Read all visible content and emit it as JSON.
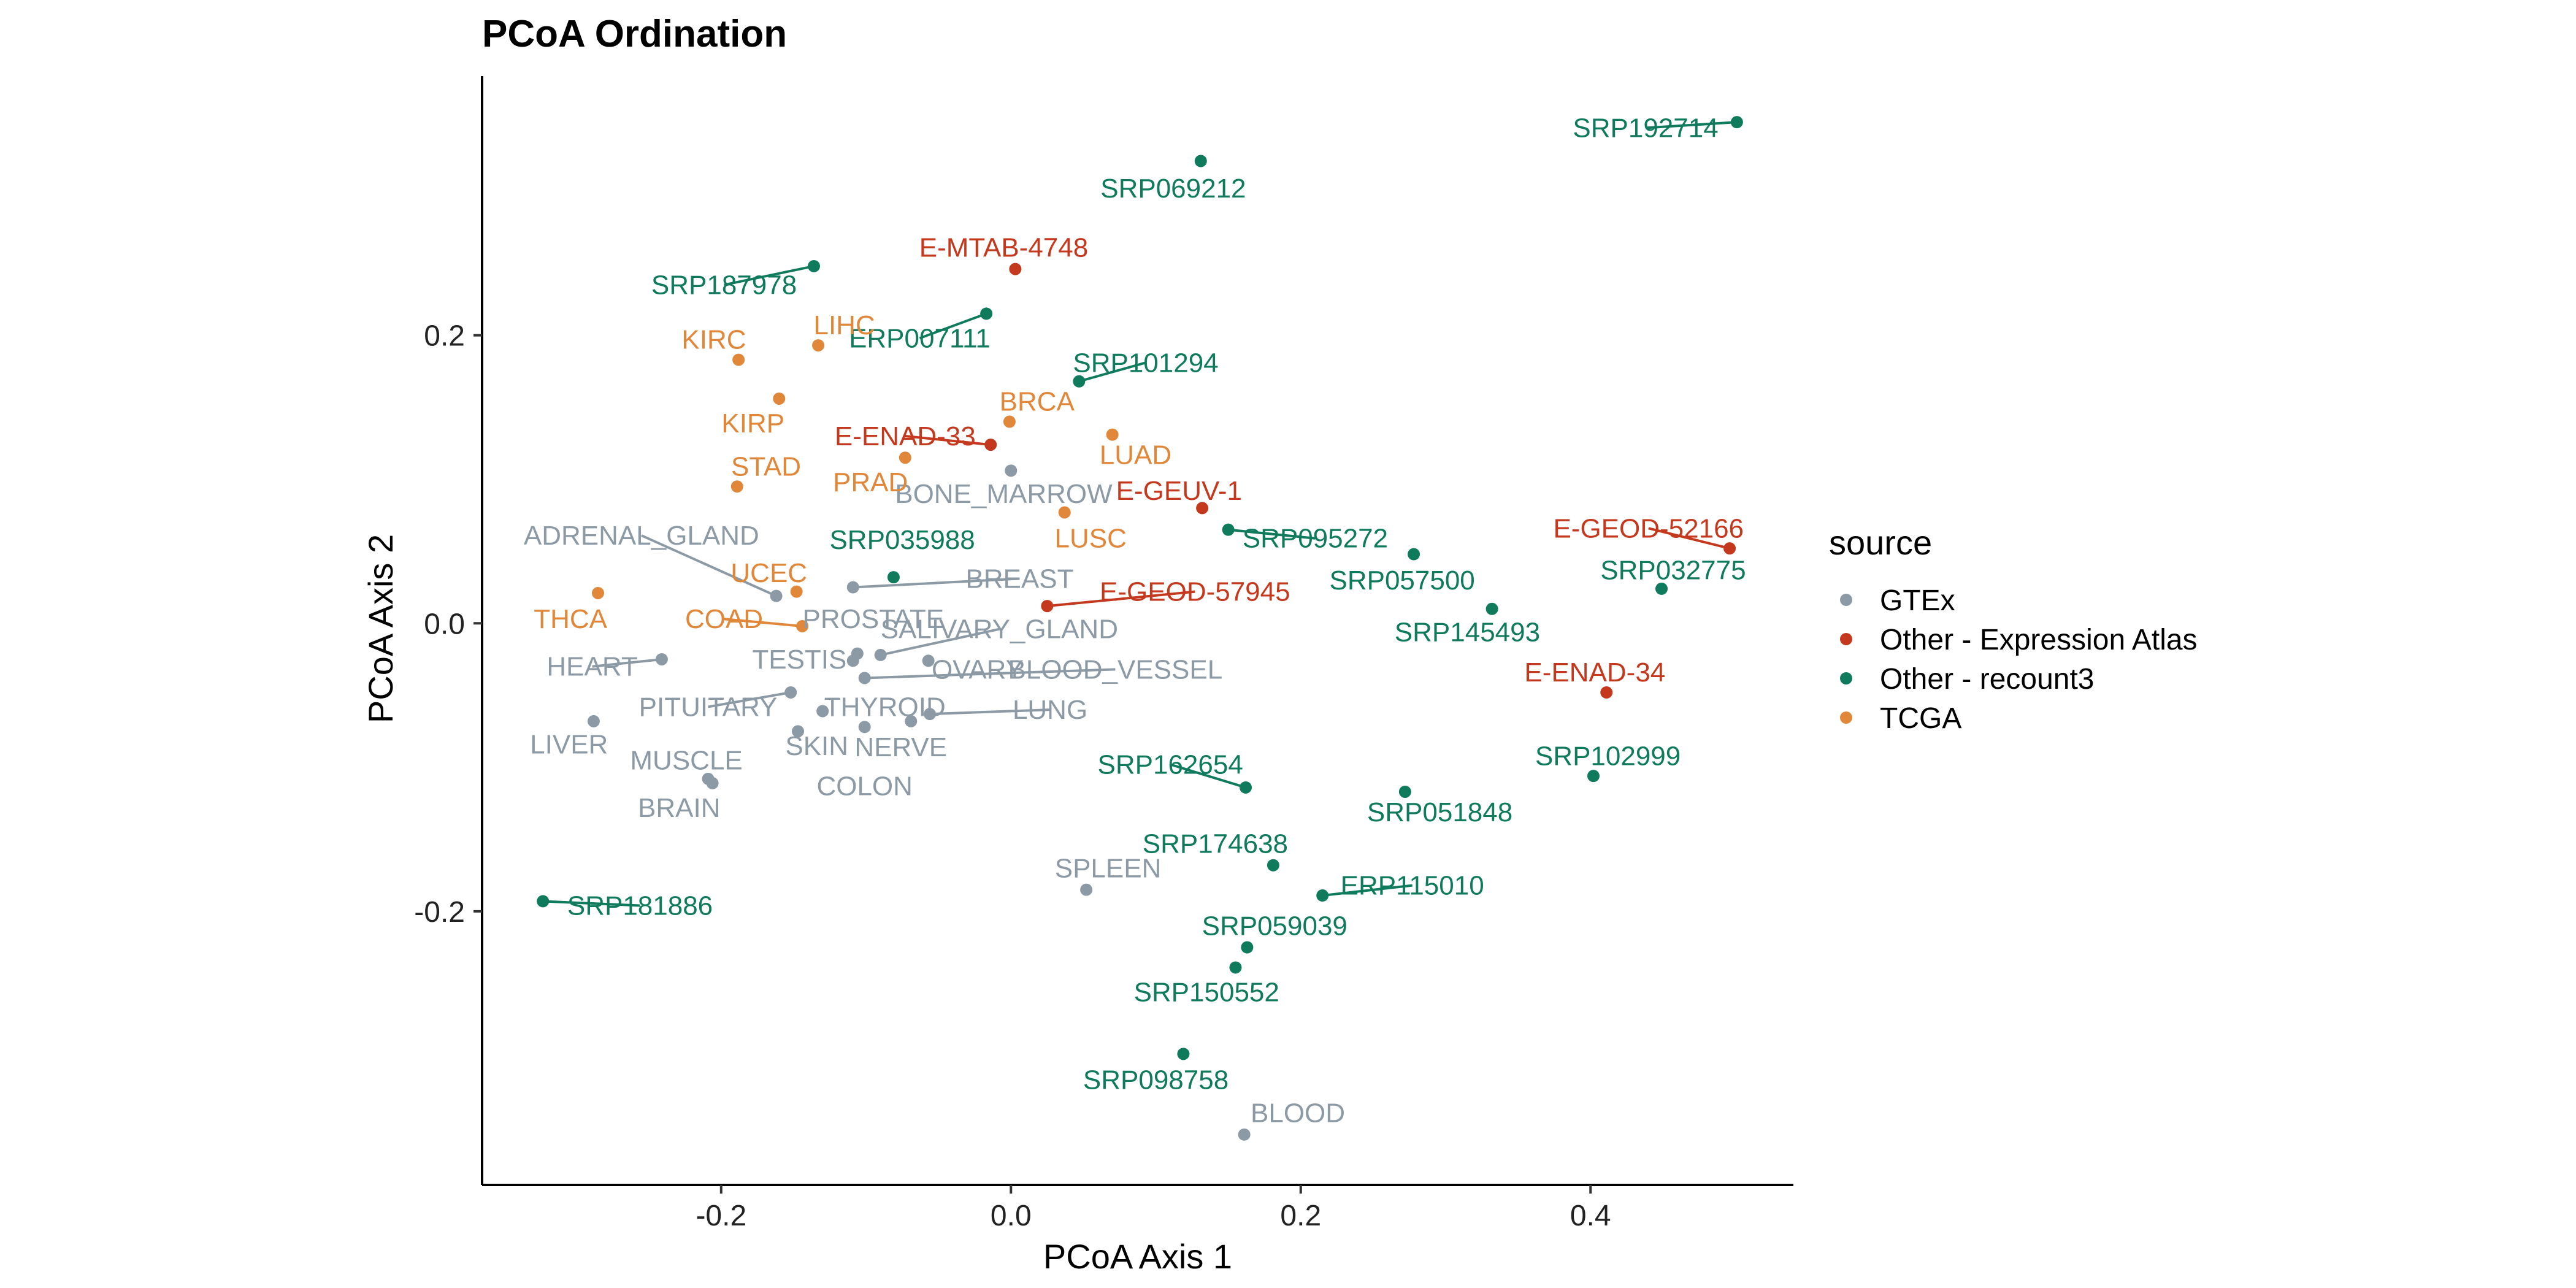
{
  "chart_data": {
    "type": "scatter",
    "title": "PCoA Ordination",
    "xlabel": "PCoA Axis 1",
    "ylabel": "PCoA Axis 2",
    "xlim": [
      -0.365,
      0.54
    ],
    "ylim": [
      -0.39,
      0.38
    ],
    "xticks": [
      -0.2,
      0.0,
      0.2,
      0.4
    ],
    "yticks": [
      0.2,
      0.0,
      -0.2
    ],
    "xtick_labels": [
      "-0.2",
      "0.0",
      "0.2",
      "0.4"
    ],
    "ytick_labels": [
      "0.2",
      "0.0",
      "-0.2"
    ],
    "grid": false,
    "legend": {
      "title": "source",
      "placement": "right",
      "entries": [
        {
          "name": "GTEx",
          "color": "#8c9aa5"
        },
        {
          "name": "Other - Expression Atlas",
          "color": "#c4391d"
        },
        {
          "name": "Other - recount3",
          "color": "#0f7a5c"
        },
        {
          "name": "TCGA",
          "color": "#e0873a"
        }
      ]
    },
    "series": [
      {
        "name": "GTEx",
        "color": "#8c9aa5",
        "points": [
          {
            "label": "BONE_MARROW",
            "x": 0.0,
            "y": 0.106,
            "lx": -0.005,
            "ly": 0.09
          },
          {
            "label": "ADRENAL_GLAND",
            "x": -0.162,
            "y": 0.019,
            "lx": -0.255,
            "ly": 0.061
          },
          {
            "label": "BREAST",
            "x": -0.109,
            "y": 0.025,
            "lx": 0.006,
            "ly": 0.031
          },
          {
            "label": "PROSTATE",
            "x": -0.106,
            "y": -0.021,
            "lx": -0.095,
            "ly": 0.003
          },
          {
            "label": "SALIVARY_GLAND",
            "x": -0.09,
            "y": -0.022,
            "lx": -0.008,
            "ly": -0.004
          },
          {
            "label": "TESTIS",
            "x": -0.109,
            "y": -0.026,
            "lx": -0.146,
            "ly": -0.025
          },
          {
            "label": "OVARY",
            "x": -0.057,
            "y": -0.026,
            "lx": -0.023,
            "ly": -0.032
          },
          {
            "label": "BLOOD_VESSEL",
            "x": -0.101,
            "y": -0.038,
            "lx": 0.072,
            "ly": -0.032
          },
          {
            "label": "HEART",
            "x": -0.241,
            "y": -0.025,
            "lx": -0.289,
            "ly": -0.03
          },
          {
            "label": "PITUITARY",
            "x": -0.152,
            "y": -0.048,
            "lx": -0.209,
            "ly": -0.058
          },
          {
            "label": "THYROID",
            "x": -0.13,
            "y": -0.061,
            "lx": -0.087,
            "ly": -0.058
          },
          {
            "label": "LUNG",
            "x": -0.056,
            "y": -0.063,
            "lx": 0.027,
            "ly": -0.06
          },
          {
            "label": "SKIN",
            "x": -0.147,
            "y": -0.075,
            "lx": -0.134,
            "ly": -0.085
          },
          {
            "label": "NERVE",
            "x": -0.069,
            "y": -0.068,
            "lx": -0.076,
            "ly": -0.086
          },
          {
            "label": "COLON",
            "x": -0.101,
            "y": -0.072,
            "lx": -0.101,
            "ly": -0.113
          },
          {
            "label": "LIVER",
            "x": -0.288,
            "y": -0.068,
            "lx": -0.305,
            "ly": -0.084
          },
          {
            "label": "MUSCLE",
            "x": -0.209,
            "y": -0.108,
            "lx": -0.224,
            "ly": -0.095
          },
          {
            "label": "BRAIN",
            "x": -0.206,
            "y": -0.111,
            "lx": -0.229,
            "ly": -0.128
          },
          {
            "label": "SPLEEN",
            "x": 0.052,
            "y": -0.185,
            "lx": 0.067,
            "ly": -0.17
          },
          {
            "label": "BLOOD",
            "x": 0.161,
            "y": -0.355,
            "lx": 0.198,
            "ly": -0.34
          }
        ]
      },
      {
        "name": "Other - Expression Atlas",
        "color": "#c4391d",
        "points": [
          {
            "label": "E-MTAB-4748",
            "x": 0.003,
            "y": 0.246,
            "lx": -0.005,
            "ly": 0.261
          },
          {
            "label": "E-ENAD-33",
            "x": -0.014,
            "y": 0.124,
            "lx": -0.073,
            "ly": 0.13
          },
          {
            "label": "E-GEUV-1",
            "x": 0.132,
            "y": 0.08,
            "lx": 0.116,
            "ly": 0.092
          },
          {
            "label": "E-GEOD-57945",
            "x": 0.025,
            "y": 0.012,
            "lx": 0.127,
            "ly": 0.022
          },
          {
            "label": "E-GEOD-52166",
            "x": 0.496,
            "y": 0.052,
            "lx": 0.44,
            "ly": 0.066
          },
          {
            "label": "E-ENAD-34",
            "x": 0.411,
            "y": -0.048,
            "lx": 0.403,
            "ly": -0.034
          }
        ]
      },
      {
        "name": "Other - recount3",
        "color": "#0f7a5c",
        "points": [
          {
            "label": "SRP192714",
            "x": 0.501,
            "y": 0.348,
            "lx": 0.438,
            "ly": 0.344
          },
          {
            "label": "SRP069212",
            "x": 0.131,
            "y": 0.321,
            "lx": 0.112,
            "ly": 0.302
          },
          {
            "label": "SRP187978",
            "x": -0.136,
            "y": 0.248,
            "lx": -0.198,
            "ly": 0.235
          },
          {
            "label": "ERP007111",
            "x": -0.017,
            "y": 0.215,
            "lx": -0.063,
            "ly": 0.198
          },
          {
            "label": "SRP101294",
            "x": 0.047,
            "y": 0.168,
            "lx": 0.093,
            "ly": 0.181
          },
          {
            "label": "SRP035988",
            "x": -0.081,
            "y": 0.032,
            "lx": -0.075,
            "ly": 0.058
          },
          {
            "label": "SRP095272",
            "x": 0.15,
            "y": 0.065,
            "lx": 0.21,
            "ly": 0.059
          },
          {
            "label": "SRP057500",
            "x": 0.278,
            "y": 0.048,
            "lx": 0.27,
            "ly": 0.03
          },
          {
            "label": "SRP032775",
            "x": 0.449,
            "y": 0.024,
            "lx": 0.457,
            "ly": 0.037
          },
          {
            "label": "SRP145493",
            "x": 0.332,
            "y": 0.01,
            "lx": 0.315,
            "ly": -0.006
          },
          {
            "label": "SRP162654",
            "x": 0.162,
            "y": -0.114,
            "lx": 0.11,
            "ly": -0.098
          },
          {
            "label": "SRP051848",
            "x": 0.272,
            "y": -0.117,
            "lx": 0.296,
            "ly": -0.131
          },
          {
            "label": "SRP102999",
            "x": 0.402,
            "y": -0.106,
            "lx": 0.412,
            "ly": -0.092
          },
          {
            "label": "SRP174638",
            "x": 0.181,
            "y": -0.168,
            "lx": 0.141,
            "ly": -0.153
          },
          {
            "label": "ERP115010",
            "x": 0.215,
            "y": -0.189,
            "lx": 0.277,
            "ly": -0.182
          },
          {
            "label": "SRP059039",
            "x": 0.163,
            "y": -0.225,
            "lx": 0.182,
            "ly": -0.21
          },
          {
            "label": "SRP150552",
            "x": 0.155,
            "y": -0.239,
            "lx": 0.135,
            "ly": -0.256
          },
          {
            "label": "SRP181886",
            "x": -0.323,
            "y": -0.193,
            "lx": -0.256,
            "ly": -0.196
          },
          {
            "label": "SRP098758",
            "x": 0.119,
            "y": -0.299,
            "lx": 0.1,
            "ly": -0.317
          }
        ]
      },
      {
        "name": "TCGA",
        "color": "#e0873a",
        "points": [
          {
            "label": "KIRC",
            "x": -0.188,
            "y": 0.183,
            "lx": -0.205,
            "ly": 0.197
          },
          {
            "label": "LIHC",
            "x": -0.133,
            "y": 0.193,
            "lx": -0.115,
            "ly": 0.207
          },
          {
            "label": "KIRP",
            "x": -0.16,
            "y": 0.156,
            "lx": -0.178,
            "ly": 0.139
          },
          {
            "label": "BRCA",
            "x": -0.001,
            "y": 0.14,
            "lx": 0.018,
            "ly": 0.154
          },
          {
            "label": "LUAD",
            "x": 0.07,
            "y": 0.131,
            "lx": 0.086,
            "ly": 0.117
          },
          {
            "label": "STAD",
            "x": -0.189,
            "y": 0.095,
            "lx": -0.169,
            "ly": 0.109
          },
          {
            "label": "PRAD",
            "x": -0.073,
            "y": 0.115,
            "lx": -0.097,
            "ly": 0.098
          },
          {
            "label": "LUSC",
            "x": 0.037,
            "y": 0.077,
            "lx": 0.055,
            "ly": 0.059
          },
          {
            "label": "UCEC",
            "x": -0.148,
            "y": 0.022,
            "lx": -0.167,
            "ly": 0.035
          },
          {
            "label": "THCA",
            "x": -0.285,
            "y": 0.021,
            "lx": -0.304,
            "ly": 0.003
          },
          {
            "label": "COAD",
            "x": -0.144,
            "y": -0.002,
            "lx": -0.198,
            "ly": 0.003
          }
        ]
      }
    ]
  }
}
